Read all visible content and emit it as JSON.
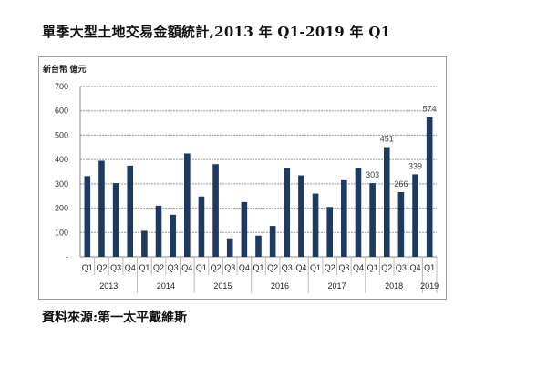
{
  "chart_data": {
    "type": "bar",
    "title": "單季大型土地交易金額統計,2013 年 Q1-2019 年 Q1",
    "ylabel": "新台幣 億元",
    "ylim": [
      0,
      700
    ],
    "yticks": [
      "-",
      "100",
      "200",
      "300",
      "400",
      "500",
      "600",
      "700"
    ],
    "grid": true,
    "bar_color": "#1f3a5f",
    "groups": [
      {
        "year": "2013",
        "quarters": [
          "Q1",
          "Q2",
          "Q3",
          "Q4"
        ]
      },
      {
        "year": "2014",
        "quarters": [
          "Q1",
          "Q2",
          "Q3",
          "Q4"
        ]
      },
      {
        "year": "2015",
        "quarters": [
          "Q1",
          "Q2",
          "Q3",
          "Q4"
        ]
      },
      {
        "year": "2016",
        "quarters": [
          "Q1",
          "Q2",
          "Q3",
          "Q4"
        ]
      },
      {
        "year": "2017",
        "quarters": [
          "Q1",
          "Q2",
          "Q3",
          "Q4"
        ]
      },
      {
        "year": "2018",
        "quarters": [
          "Q1",
          "Q2",
          "Q3",
          "Q4"
        ]
      },
      {
        "year": "2019",
        "quarters": [
          "Q1"
        ]
      }
    ],
    "values": [
      332,
      395,
      303,
      375,
      107,
      210,
      173,
      425,
      248,
      381,
      76,
      225,
      87,
      127,
      366,
      335,
      260,
      205,
      315,
      366,
      303,
      451,
      266,
      339,
      574
    ],
    "data_labels": {
      "20": "303",
      "21": "451",
      "22": "266",
      "23": "339",
      "24": "574"
    }
  },
  "source": "資料來源:第一太平戴維斯"
}
